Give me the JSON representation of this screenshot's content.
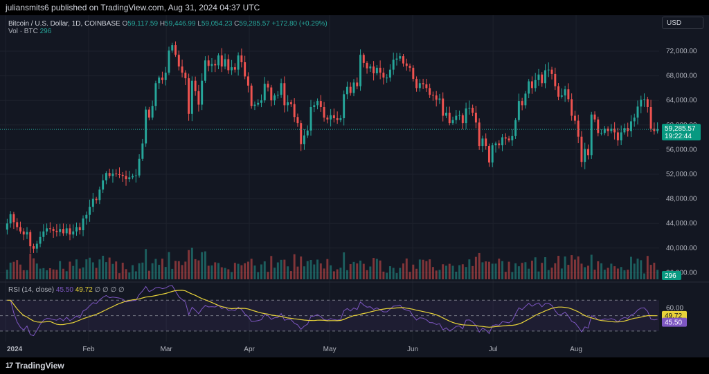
{
  "header": {
    "publish_text": "juliansmits6 published on TradingView.com, Aug 31, 2024 04:37 UTC",
    "symbol_label": "Bitcoin / U.S. Dollar, 1D, COINBASE",
    "o_key": "O",
    "o_val": "59,117.59",
    "h_key": "H",
    "h_val": "59,446.99",
    "l_key": "L",
    "l_val": "59,054.23",
    "c_key": "C",
    "c_val": "59,285.57",
    "change": "+172.80 (+0.29%)",
    "vol_label": "Vol · BTC",
    "vol_val": "296",
    "currency": "USD"
  },
  "rsi_header": {
    "label": "RSI (14, close)",
    "rsi_val": "45.50",
    "ma_val": "49.72",
    "icons": "∅ ∅ ∅ ∅"
  },
  "price_tag": {
    "price": "59,285.57",
    "countdown": "19:22:44"
  },
  "vol_tag": "296",
  "rsi_tags": {
    "ma": "49.72",
    "rsi": "45.50"
  },
  "footer": {
    "brand": "TradingView",
    "logo_glyph": "17"
  },
  "colors": {
    "up": "#26a69a",
    "down": "#ef5350",
    "bg": "#131722",
    "grid": "#1e222d",
    "rsi": "#7e57c2",
    "rsi_ma": "#e8d33a",
    "text": "#d1d4dc",
    "tag": "#089981"
  },
  "chart_data": {
    "type": "candlestick",
    "price_axis_ticks": [
      "72,000.00",
      "68,000.00",
      "64,000.00",
      "60,000.00",
      "56,000.00",
      "52,000.00",
      "48,000.00",
      "44,000.00",
      "40,000.00",
      "36,000.00"
    ],
    "price_axis_values": [
      72000,
      68000,
      64000,
      60000,
      56000,
      52000,
      48000,
      44000,
      40000,
      36000
    ],
    "rsi_axis_ticks": [
      "60.00",
      "40.00"
    ],
    "rsi_axis_values": [
      60,
      40
    ],
    "rsi_bands": [
      70,
      50,
      30
    ],
    "time_labels": [
      "2024",
      "Feb",
      "Mar",
      "Apr",
      "May",
      "Jun",
      "Jul",
      "Aug"
    ],
    "time_label_index": [
      0,
      31,
      60,
      91,
      121,
      152,
      182,
      213
    ],
    "current_price": 59285.57,
    "candles_approx": [
      [
        43000,
        44000
      ],
      [
        44000,
        45500
      ],
      [
        45500,
        44200
      ],
      [
        44200,
        43400
      ],
      [
        43400,
        42700
      ],
      [
        42700,
        42200
      ],
      [
        42200,
        42600
      ],
      [
        42600,
        40300
      ],
      [
        40300,
        39900
      ],
      [
        39900,
        40700
      ],
      [
        40700,
        41800
      ],
      [
        41800,
        42700
      ],
      [
        42700,
        43200
      ],
      [
        43200,
        43100
      ],
      [
        43100,
        42800
      ],
      [
        42800,
        42600
      ],
      [
        42600,
        43100
      ],
      [
        43100,
        42400
      ],
      [
        42400,
        43200
      ],
      [
        43200,
        42200
      ],
      [
        42200,
        42700
      ],
      [
        42700,
        43400
      ],
      [
        43400,
        42900
      ],
      [
        42900,
        44800
      ],
      [
        44800,
        45400
      ],
      [
        45400,
        46700
      ],
      [
        46700,
        48000
      ],
      [
        48000,
        47800
      ],
      [
        47800,
        49500
      ],
      [
        49500,
        51000
      ],
      [
        51000,
        52200
      ],
      [
        52200,
        51700
      ],
      [
        51700,
        52100
      ],
      [
        52100,
        52000
      ],
      [
        52000,
        51900
      ],
      [
        51900,
        51700
      ],
      [
        51700,
        51200
      ],
      [
        51200,
        51500
      ],
      [
        51500,
        51700
      ],
      [
        51700,
        51800
      ],
      [
        51800,
        54500
      ],
      [
        54500,
        57000
      ],
      [
        57000,
        62500
      ],
      [
        62500,
        61200
      ],
      [
        61200,
        63100
      ],
      [
        63100,
        66800
      ],
      [
        66800,
        67700
      ],
      [
        67700,
        67300
      ],
      [
        67300,
        68500
      ],
      [
        68500,
        72100
      ],
      [
        72100,
        73000
      ],
      [
        73000,
        71400
      ],
      [
        71400,
        69500
      ],
      [
        69500,
        68500
      ],
      [
        68500,
        67600
      ],
      [
        67600,
        61800
      ],
      [
        61800,
        67200
      ],
      [
        67200,
        65500
      ],
      [
        65500,
        63300
      ],
      [
        63300,
        67200
      ],
      [
        67200,
        70500
      ],
      [
        70500,
        69600
      ],
      [
        69600,
        69900
      ],
      [
        69900,
        69700
      ],
      [
        69700,
        71300
      ],
      [
        71300,
        69500
      ],
      [
        69500,
        70700
      ],
      [
        70700,
        68900
      ],
      [
        68900,
        69400
      ],
      [
        69400,
        69000
      ],
      [
        69000,
        71300
      ],
      [
        71300,
        70200
      ],
      [
        70200,
        67900
      ],
      [
        67900,
        66400
      ],
      [
        66400,
        63100
      ],
      [
        63100,
        63300
      ],
      [
        63300,
        63600
      ],
      [
        63600,
        64000
      ],
      [
        64000,
        66700
      ],
      [
        66700,
        66100
      ],
      [
        66100,
        64000
      ],
      [
        64000,
        64800
      ],
      [
        64800,
        64900
      ],
      [
        64900,
        66800
      ],
      [
        66800,
        63200
      ],
      [
        63200,
        63700
      ],
      [
        63700,
        63400
      ],
      [
        63400,
        61300
      ],
      [
        61300,
        60300
      ],
      [
        60300,
        56900
      ],
      [
        56900,
        58300
      ],
      [
        58300,
        59100
      ],
      [
        59100,
        62900
      ],
      [
        62900,
        63200
      ],
      [
        63200,
        63900
      ],
      [
        63900,
        62900
      ],
      [
        62900,
        61200
      ],
      [
        61200,
        60900
      ],
      [
        60900,
        61600
      ],
      [
        61600,
        61100
      ],
      [
        61100,
        60800
      ],
      [
        60800,
        61100
      ],
      [
        61100,
        65000
      ],
      [
        65000,
        66200
      ],
      [
        66200,
        65200
      ],
      [
        65200,
        66900
      ],
      [
        66900,
        66300
      ],
      [
        66300,
        71400
      ],
      [
        71400,
        70100
      ],
      [
        70100,
        69200
      ],
      [
        69200,
        69500
      ],
      [
        69500,
        68400
      ],
      [
        68400,
        69300
      ],
      [
        69300,
        68500
      ],
      [
        68500,
        67700
      ],
      [
        67700,
        67700
      ],
      [
        67700,
        69000
      ],
      [
        69000,
        70600
      ],
      [
        70600,
        70800
      ],
      [
        70800,
        71200
      ],
      [
        71200,
        70000
      ],
      [
        70000,
        69600
      ],
      [
        69600,
        69300
      ],
      [
        69300,
        67500
      ],
      [
        67500,
        66000
      ],
      [
        66000,
        66800
      ],
      [
        66800,
        66600
      ],
      [
        66600,
        66000
      ],
      [
        66000,
        64900
      ],
      [
        64900,
        64800
      ],
      [
        64800,
        64100
      ],
      [
        64100,
        64300
      ],
      [
        64300,
        61500
      ],
      [
        61500,
        62000
      ],
      [
        62000,
        60300
      ],
      [
        60300,
        60800
      ],
      [
        60800,
        61500
      ],
      [
        61500,
        61600
      ],
      [
        61600,
        60300
      ],
      [
        60300,
        62700
      ],
      [
        62700,
        62800
      ],
      [
        62800,
        62000
      ],
      [
        62000,
        60400
      ],
      [
        60400,
        56600
      ],
      [
        56600,
        57800
      ],
      [
        57800,
        56600
      ],
      [
        56600,
        53900
      ],
      [
        53900,
        56700
      ],
      [
        56700,
        57000
      ],
      [
        57000,
        56700
      ],
      [
        56700,
        58000
      ],
      [
        58000,
        57800
      ],
      [
        57800,
        57500
      ],
      [
        57500,
        58200
      ],
      [
        58200,
        60800
      ],
      [
        60800,
        63900
      ],
      [
        63900,
        63200
      ],
      [
        63200,
        65100
      ],
      [
        65100,
        67100
      ],
      [
        67100,
        66000
      ],
      [
        66000,
        67300
      ],
      [
        67300,
        68200
      ],
      [
        68200,
        66800
      ],
      [
        66800,
        68900
      ],
      [
        68900,
        69000
      ],
      [
        69000,
        68300
      ],
      [
        68300,
        66300
      ],
      [
        66300,
        64600
      ],
      [
        64600,
        64800
      ],
      [
        64800,
        65800
      ],
      [
        65800,
        64200
      ],
      [
        64200,
        61500
      ],
      [
        61500,
        60700
      ],
      [
        60700,
        58100
      ],
      [
        58100,
        54000
      ],
      [
        54000,
        56100
      ],
      [
        56100,
        55100
      ],
      [
        55100,
        61700
      ],
      [
        61700,
        60900
      ],
      [
        60900,
        58700
      ],
      [
        58700,
        58700
      ],
      [
        58700,
        59400
      ],
      [
        59400,
        59000
      ],
      [
        59000,
        59400
      ],
      [
        59400,
        58800
      ],
      [
        58800,
        57500
      ],
      [
        57500,
        58800
      ],
      [
        58800,
        59500
      ],
      [
        59500,
        59000
      ],
      [
        59000,
        60600
      ],
      [
        60600,
        61200
      ],
      [
        61200,
        63000
      ],
      [
        63000,
        64100
      ],
      [
        64100,
        64200
      ],
      [
        64200,
        62900
      ],
      [
        62900,
        59400
      ],
      [
        59400,
        59000
      ],
      [
        59000,
        59300
      ]
    ]
  }
}
